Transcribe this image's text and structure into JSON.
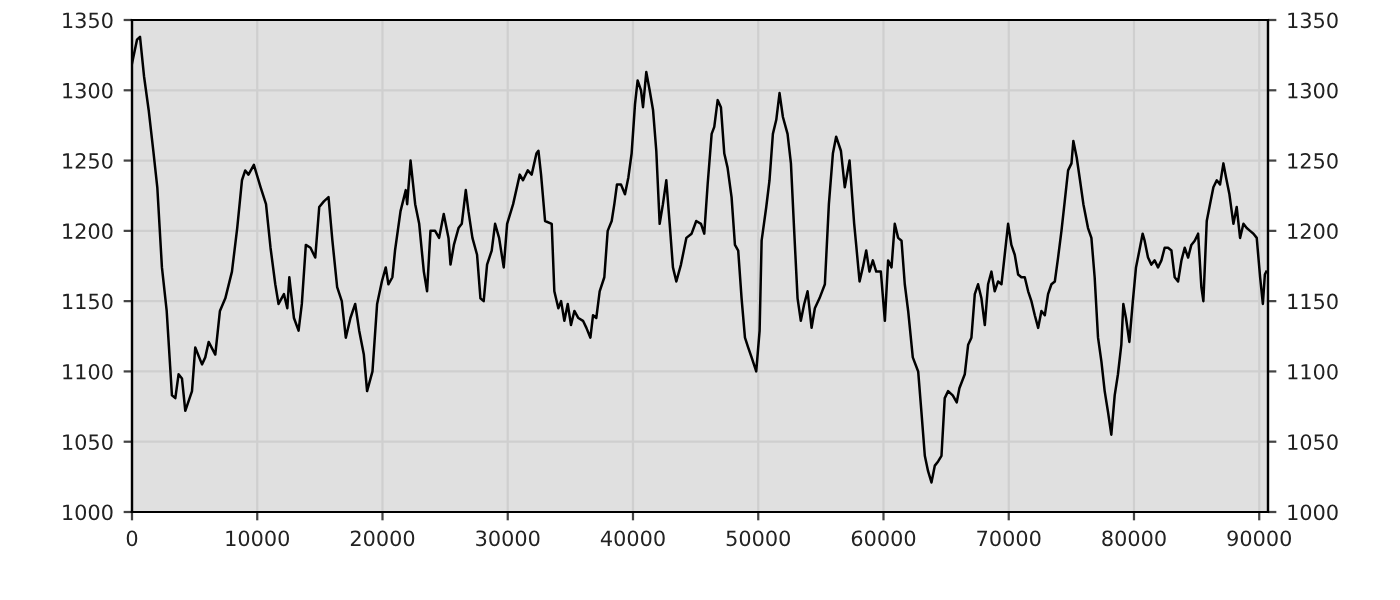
{
  "chart_data": {
    "type": "line",
    "x": [
      0,
      400,
      640,
      960,
      1330,
      1700,
      2020,
      2390,
      2770,
      3190,
      3460,
      3720,
      3990,
      4255,
      4790,
      5050,
      5590,
      5850,
      6120,
      6650,
      7020,
      7450,
      7980,
      8400,
      8780,
      9040,
      9300,
      9730,
      10270,
      10700,
      11060,
      11440,
      11700,
      12130,
      12400,
      12560,
      12930,
      13300,
      13560,
      13880,
      14250,
      14630,
      14950,
      15320,
      15690,
      16000,
      16380,
      16750,
      17070,
      17440,
      17820,
      18140,
      18510,
      18770,
      19200,
      19570,
      19950,
      20260,
      20470,
      20790,
      21000,
      21440,
      21860,
      21970,
      22240,
      22610,
      22930,
      23300,
      23560,
      23830,
      24200,
      24520,
      24890,
      25270,
      25430,
      25700,
      26070,
      26330,
      26650,
      26860,
      27180,
      27550,
      27820,
      28080,
      28350,
      28720,
      28990,
      29310,
      29680,
      29950,
      30430,
      30960,
      31220,
      31600,
      31910,
      32290,
      32450,
      32660,
      32980,
      33510,
      33720,
      34040,
      34260,
      34520,
      34790,
      35050,
      35320,
      35640,
      36010,
      36280,
      36600,
      36810,
      37070,
      37340,
      37710,
      37980,
      38300,
      38510,
      38720,
      39040,
      39360,
      39630,
      39890,
      40160,
      40370,
      40640,
      40800,
      41060,
      41330,
      41600,
      41860,
      42130,
      42390,
      42660,
      42930,
      43190,
      43460,
      43830,
      44260,
      44680,
      45050,
      45430,
      45690,
      45960,
      46280,
      46490,
      46760,
      47020,
      47290,
      47550,
      47870,
      48140,
      48400,
      48670,
      48940,
      49200,
      49470,
      49840,
      50110,
      50270,
      50640,
      50900,
      51170,
      51440,
      51700,
      51970,
      52340,
      52610,
      52870,
      53140,
      53400,
      53670,
      53940,
      54260,
      54520,
      54890,
      55320,
      55640,
      55960,
      56220,
      56600,
      56910,
      57290,
      57660,
      57820,
      58090,
      58350,
      58620,
      58880,
      59150,
      59420,
      59790,
      60110,
      60370,
      60640,
      60900,
      61170,
      61440,
      61700,
      61970,
      62340,
      62770,
      63030,
      63300,
      63560,
      63830,
      64100,
      64360,
      64630,
      64890,
      65160,
      65530,
      65850,
      66060,
      66490,
      66760,
      67020,
      67290,
      67550,
      67820,
      68090,
      68350,
      68620,
      68880,
      69150,
      69420,
      69680,
      69950,
      70210,
      70480,
      70750,
      71010,
      71280,
      71550,
      71810,
      72080,
      72350,
      72610,
      72880,
      73140,
      73410,
      73680,
      73940,
      74210,
      74470,
      74740,
      75010,
      75160,
      75430,
      75690,
      75960,
      76330,
      76600,
      76860,
      77130,
      77400,
      77660,
      77930,
      78190,
      78460,
      78720,
      78990,
      79150,
      79360,
      79630,
      79890,
      80160,
      80430,
      80690,
      80850,
      81120,
      81390,
      81650,
      81920,
      82190,
      82450,
      82720,
      82990,
      83250,
      83520,
      83790,
      84050,
      84320,
      84580,
      84850,
      85120,
      85380,
      85540,
      85810,
      86070,
      86340,
      86610,
      86870,
      87140,
      87350,
      87620,
      87940,
      88200,
      88470,
      88740,
      89000,
      89270,
      89540,
      89800,
      90070,
      90290,
      90450,
      90560
    ],
    "values": [
      1319,
      1336,
      1338,
      1310,
      1286,
      1257,
      1231,
      1174,
      1143,
      1083,
      1081,
      1098,
      1095,
      1072,
      1086,
      1117,
      1105,
      1110,
      1121,
      1112,
      1143,
      1152,
      1171,
      1202,
      1236,
      1243,
      1240,
      1247,
      1231,
      1219,
      1188,
      1162,
      1148,
      1155,
      1145,
      1167,
      1138,
      1129,
      1148,
      1190,
      1188,
      1181,
      1217,
      1221,
      1224,
      1193,
      1160,
      1150,
      1124,
      1138,
      1148,
      1129,
      1112,
      1086,
      1100,
      1148,
      1164,
      1174,
      1162,
      1167,
      1186,
      1214,
      1229,
      1219,
      1250,
      1219,
      1205,
      1171,
      1157,
      1200,
      1200,
      1195,
      1212,
      1195,
      1176,
      1190,
      1202,
      1205,
      1229,
      1214,
      1195,
      1183,
      1152,
      1150,
      1176,
      1186,
      1205,
      1195,
      1174,
      1205,
      1219,
      1240,
      1236,
      1243,
      1240,
      1255,
      1257,
      1240,
      1207,
      1205,
      1157,
      1145,
      1150,
      1136,
      1148,
      1133,
      1143,
      1138,
      1136,
      1131,
      1124,
      1140,
      1138,
      1157,
      1167,
      1200,
      1207,
      1219,
      1233,
      1233,
      1226,
      1238,
      1255,
      1290,
      1307,
      1300,
      1288,
      1313,
      1300,
      1286,
      1257,
      1205,
      1219,
      1236,
      1205,
      1174,
      1164,
      1176,
      1195,
      1198,
      1207,
      1205,
      1198,
      1233,
      1269,
      1274,
      1293,
      1288,
      1255,
      1245,
      1224,
      1190,
      1186,
      1152,
      1124,
      1117,
      1110,
      1100,
      1129,
      1193,
      1217,
      1236,
      1269,
      1279,
      1298,
      1281,
      1269,
      1248,
      1200,
      1152,
      1136,
      1148,
      1157,
      1131,
      1145,
      1152,
      1162,
      1219,
      1255,
      1267,
      1257,
      1231,
      1250,
      1205,
      1190,
      1164,
      1174,
      1186,
      1171,
      1179,
      1171,
      1171,
      1136,
      1179,
      1174,
      1205,
      1195,
      1193,
      1162,
      1143,
      1110,
      1100,
      1071,
      1040,
      1029,
      1021,
      1033,
      1036,
      1040,
      1081,
      1086,
      1083,
      1078,
      1088,
      1098,
      1119,
      1124,
      1155,
      1162,
      1152,
      1133,
      1162,
      1171,
      1157,
      1164,
      1162,
      1183,
      1205,
      1190,
      1183,
      1169,
      1167,
      1167,
      1157,
      1150,
      1140,
      1131,
      1143,
      1140,
      1155,
      1162,
      1164,
      1181,
      1200,
      1221,
      1243,
      1248,
      1264,
      1252,
      1236,
      1219,
      1202,
      1195,
      1167,
      1124,
      1107,
      1086,
      1071,
      1055,
      1083,
      1098,
      1119,
      1148,
      1138,
      1121,
      1148,
      1174,
      1186,
      1198,
      1193,
      1181,
      1176,
      1179,
      1174,
      1179,
      1188,
      1188,
      1186,
      1167,
      1164,
      1179,
      1188,
      1181,
      1190,
      1193,
      1198,
      1160,
      1150,
      1207,
      1219,
      1231,
      1236,
      1233,
      1248,
      1238,
      1226,
      1205,
      1217,
      1195,
      1205,
      1202,
      1200,
      1198,
      1195,
      1167,
      1148,
      1169,
      1171
    ],
    "color": "#000000",
    "xlim": [
      0,
      90700
    ],
    "xticks": [
      0,
      10000,
      20000,
      30000,
      40000,
      50000,
      60000,
      70000,
      80000,
      90000
    ],
    "ylim": [
      1000,
      1350
    ],
    "yticks": [
      1000,
      1050,
      1100,
      1150,
      1200,
      1250,
      1300,
      1350
    ],
    "y2lim": [
      1000,
      1350
    ],
    "y2ticks": [
      1000,
      1050,
      1100,
      1150,
      1200,
      1250,
      1300,
      1350
    ],
    "grid": true,
    "legend": false,
    "marker": "none",
    "line_style": "solid"
  }
}
